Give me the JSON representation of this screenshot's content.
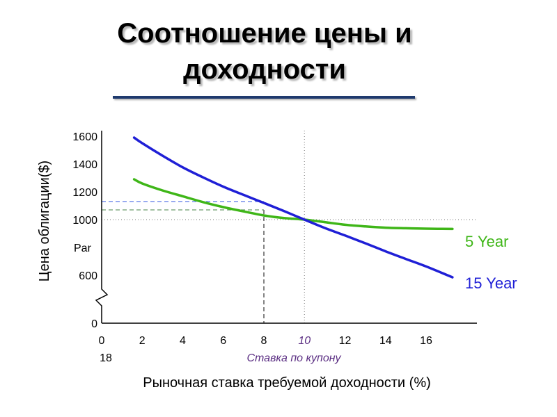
{
  "title": "Соотношение цены и доходности",
  "chart_data": {
    "type": "line",
    "ylabel": "Цена облигации($)",
    "xlabel": "Рыночная ставка требуемой доходности (%)",
    "x_ticks": [
      "0",
      "2",
      "4",
      "6",
      "8",
      "10",
      "12",
      "14",
      "16"
    ],
    "x_tick_values": [
      0,
      2,
      4,
      6,
      8,
      10,
      12,
      14,
      16
    ],
    "x_extra_tick": "18",
    "y_ticks": [
      "0",
      "600",
      "1000",
      "1200",
      "1400",
      "1600"
    ],
    "y_tick_values": [
      0,
      600,
      1000,
      1200,
      1400,
      1600
    ],
    "y_par_label": "Par",
    "y_axis_break": true,
    "coupon_rate": 10,
    "coupon_label": "Ставка по купону",
    "reference_rate": 8,
    "par": 1000,
    "grid": false,
    "series": [
      {
        "name": "5 Year",
        "color": "#3fb618",
        "x": [
          1.6,
          2,
          3,
          4,
          5,
          6,
          7,
          8,
          9,
          10,
          11,
          12,
          13,
          14,
          15,
          16,
          17.3
        ],
        "values": [
          1290,
          1260,
          1210,
          1168,
          1126,
          1090,
          1059,
          1030,
          1011,
          1000,
          982,
          963,
          951,
          942,
          938,
          935,
          933
        ]
      },
      {
        "name": "15 Year",
        "color": "#1f1fd6",
        "x": [
          1.6,
          2,
          3,
          4,
          5,
          6,
          7,
          8,
          9,
          10,
          11,
          12,
          13,
          14,
          15,
          16,
          17.3
        ],
        "values": [
          1590,
          1550,
          1460,
          1376,
          1304,
          1237,
          1178,
          1120,
          1061,
          1000,
          940,
          886,
          830,
          772,
          717,
          663,
          585
        ]
      }
    ],
    "guide_lines": [
      {
        "y": 1130,
        "color": "#5a78e8"
      },
      {
        "y": 1070,
        "color": "#6a9a6a"
      }
    ]
  }
}
